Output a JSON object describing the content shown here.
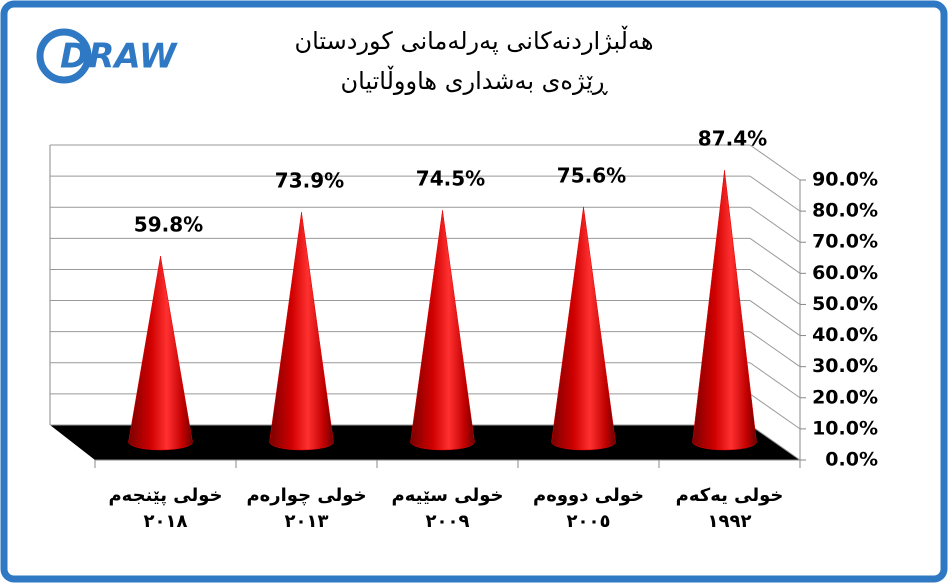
{
  "logo": "DRAW",
  "chart_data": {
    "type": "cone",
    "title": "هەڵبژاردنەکانی پەرلەمانی کوردستان",
    "subtitle": "ڕێژەی بەشداری هاووڵاتیان",
    "categories": [
      [
        "خولی پێنجەم",
        "٢٠١٨"
      ],
      [
        "خولی چوارەم",
        "٢٠١٣"
      ],
      [
        "خولی سێیەم",
        "٢٠٠٩"
      ],
      [
        "خولی دووەم",
        "٢٠٠٥"
      ],
      [
        "خولی یەکەم",
        "١٩٩٢"
      ]
    ],
    "values": [
      59.8,
      73.9,
      74.5,
      75.6,
      87.4
    ],
    "value_labels": [
      "59.8%",
      "73.9%",
      "74.5%",
      "75.6%",
      "87.4%"
    ],
    "color": "#e00000",
    "ylim": [
      0,
      90
    ],
    "yticks": [
      {
        "value": 0,
        "label": "0.0%"
      },
      {
        "value": 10,
        "label": "10.0%"
      },
      {
        "value": 20,
        "label": "20.0%"
      },
      {
        "value": 30,
        "label": "30.0%"
      },
      {
        "value": 40,
        "label": "40.0%"
      },
      {
        "value": 50,
        "label": "50.0%"
      },
      {
        "value": 60,
        "label": "60.0%"
      },
      {
        "value": 70,
        "label": "70.0%"
      },
      {
        "value": 80,
        "label": "80.0%"
      },
      {
        "value": 90,
        "label": "90.0%"
      }
    ],
    "grid": true
  }
}
